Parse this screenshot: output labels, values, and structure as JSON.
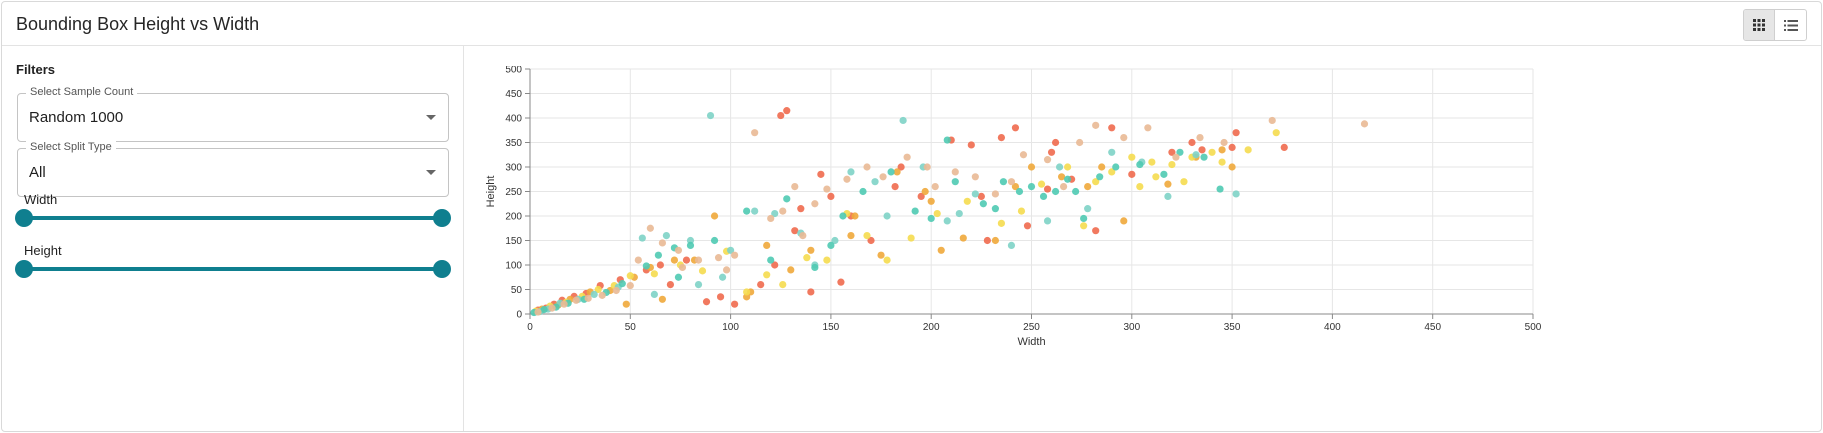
{
  "header": {
    "title": "Bounding Box Height vs Width"
  },
  "view_toggle": {
    "grid_icon": "grid-view-icon",
    "list_icon": "list-view-icon"
  },
  "filters": {
    "title": "Filters",
    "sample_count": {
      "label": "Select Sample Count",
      "value": "Random 1000"
    },
    "split_type": {
      "label": "Select Split Type",
      "value": "All"
    },
    "width_slider": {
      "label": "Width",
      "min": 0,
      "max": 500,
      "low": 0,
      "high": 500
    },
    "height_slider": {
      "label": "Height",
      "min": 0,
      "max": 500,
      "low": 0,
      "high": 500
    }
  },
  "colors": {
    "accent": "#0f7f8f",
    "palette": [
      "#ef6a4e",
      "#f0a93b",
      "#f5dc4f",
      "#7ed3c6",
      "#4fcab2",
      "#e9b995"
    ]
  },
  "chart_data": {
    "type": "scatter",
    "title": "",
    "xlabel": "Width",
    "ylabel": "Height",
    "xlim": [
      0,
      500
    ],
    "ylim": [
      0,
      500
    ],
    "xticks": [
      0,
      50,
      100,
      150,
      200,
      250,
      300,
      350,
      400,
      450,
      500
    ],
    "yticks": [
      0,
      50,
      100,
      150,
      200,
      250,
      300,
      350,
      400,
      450,
      500
    ],
    "grid": true,
    "series": [
      {
        "name": "coral",
        "color": "#ef6a4e",
        "points": [
          [
            4,
            8
          ],
          [
            8,
            12
          ],
          [
            12,
            20
          ],
          [
            16,
            28
          ],
          [
            22,
            36
          ],
          [
            28,
            42
          ],
          [
            35,
            58
          ],
          [
            45,
            70
          ],
          [
            58,
            90
          ],
          [
            65,
            100
          ],
          [
            78,
            110
          ],
          [
            95,
            35
          ],
          [
            115,
            60
          ],
          [
            122,
            100
          ],
          [
            125,
            405
          ],
          [
            128,
            415
          ],
          [
            132,
            170
          ],
          [
            135,
            215
          ],
          [
            145,
            285
          ],
          [
            150,
            240
          ],
          [
            155,
            65
          ],
          [
            160,
            200
          ],
          [
            170,
            150
          ],
          [
            182,
            260
          ],
          [
            185,
            300
          ],
          [
            195,
            240
          ],
          [
            210,
            355
          ],
          [
            220,
            345
          ],
          [
            225,
            240
          ],
          [
            228,
            150
          ],
          [
            235,
            360
          ],
          [
            242,
            380
          ],
          [
            248,
            180
          ],
          [
            258,
            255
          ],
          [
            260,
            330
          ],
          [
            262,
            350
          ],
          [
            270,
            275
          ],
          [
            282,
            170
          ],
          [
            290,
            380
          ],
          [
            300,
            285
          ],
          [
            320,
            330
          ],
          [
            330,
            350
          ],
          [
            335,
            335
          ],
          [
            350,
            340
          ],
          [
            352,
            370
          ],
          [
            376,
            340
          ],
          [
            70,
            60
          ],
          [
            88,
            25
          ],
          [
            102,
            20
          ],
          [
            140,
            45
          ]
        ]
      },
      {
        "name": "orange",
        "color": "#f0a93b",
        "points": [
          [
            6,
            10
          ],
          [
            14,
            18
          ],
          [
            20,
            30
          ],
          [
            30,
            45
          ],
          [
            40,
            48
          ],
          [
            52,
            75
          ],
          [
            60,
            95
          ],
          [
            72,
            110
          ],
          [
            82,
            110
          ],
          [
            92,
            200
          ],
          [
            110,
            45
          ],
          [
            118,
            140
          ],
          [
            130,
            90
          ],
          [
            140,
            130
          ],
          [
            160,
            160
          ],
          [
            175,
            120
          ],
          [
            183,
            290
          ],
          [
            197,
            250
          ],
          [
            205,
            130
          ],
          [
            216,
            155
          ],
          [
            232,
            150
          ],
          [
            242,
            260
          ],
          [
            250,
            300
          ],
          [
            265,
            280
          ],
          [
            278,
            260
          ],
          [
            285,
            300
          ],
          [
            296,
            190
          ],
          [
            318,
            265
          ],
          [
            332,
            320
          ],
          [
            345,
            335
          ],
          [
            350,
            300
          ],
          [
            108,
            35
          ],
          [
            66,
            30
          ],
          [
            48,
            20
          ],
          [
            162,
            200
          ],
          [
            200,
            230
          ]
        ]
      },
      {
        "name": "yellow",
        "color": "#f5dc4f",
        "points": [
          [
            3,
            6
          ],
          [
            10,
            16
          ],
          [
            18,
            24
          ],
          [
            26,
            36
          ],
          [
            34,
            50
          ],
          [
            42,
            58
          ],
          [
            50,
            78
          ],
          [
            62,
            82
          ],
          [
            75,
            100
          ],
          [
            86,
            88
          ],
          [
            98,
            128
          ],
          [
            108,
            45
          ],
          [
            118,
            80
          ],
          [
            126,
            60
          ],
          [
            138,
            115
          ],
          [
            148,
            110
          ],
          [
            158,
            205
          ],
          [
            168,
            160
          ],
          [
            178,
            110
          ],
          [
            190,
            155
          ],
          [
            203,
            205
          ],
          [
            218,
            230
          ],
          [
            235,
            185
          ],
          [
            245,
            210
          ],
          [
            255,
            265
          ],
          [
            268,
            300
          ],
          [
            276,
            180
          ],
          [
            282,
            270
          ],
          [
            290,
            290
          ],
          [
            300,
            320
          ],
          [
            310,
            310
          ],
          [
            320,
            305
          ],
          [
            330,
            320
          ],
          [
            340,
            330
          ],
          [
            345,
            310
          ],
          [
            358,
            335
          ],
          [
            372,
            370
          ],
          [
            304,
            260
          ],
          [
            312,
            280
          ],
          [
            326,
            270
          ]
        ]
      },
      {
        "name": "lightteal",
        "color": "#7ed3c6",
        "points": [
          [
            5,
            5
          ],
          [
            9,
            10
          ],
          [
            15,
            22
          ],
          [
            24,
            30
          ],
          [
            32,
            40
          ],
          [
            44,
            55
          ],
          [
            56,
            155
          ],
          [
            68,
            160
          ],
          [
            80,
            150
          ],
          [
            90,
            405
          ],
          [
            100,
            130
          ],
          [
            112,
            210
          ],
          [
            122,
            205
          ],
          [
            135,
            165
          ],
          [
            152,
            150
          ],
          [
            160,
            290
          ],
          [
            172,
            270
          ],
          [
            186,
            395
          ],
          [
            196,
            300
          ],
          [
            208,
            190
          ],
          [
            214,
            205
          ],
          [
            222,
            245
          ],
          [
            240,
            140
          ],
          [
            258,
            190
          ],
          [
            264,
            300
          ],
          [
            278,
            215
          ],
          [
            290,
            330
          ],
          [
            305,
            310
          ],
          [
            318,
            240
          ],
          [
            332,
            325
          ],
          [
            352,
            245
          ],
          [
            84,
            60
          ],
          [
            96,
            75
          ],
          [
            62,
            40
          ],
          [
            142,
            100
          ],
          [
            178,
            200
          ]
        ]
      },
      {
        "name": "teal",
        "color": "#4fcab2",
        "points": [
          [
            2,
            3
          ],
          [
            7,
            9
          ],
          [
            13,
            14
          ],
          [
            19,
            22
          ],
          [
            27,
            30
          ],
          [
            38,
            44
          ],
          [
            46,
            62
          ],
          [
            58,
            98
          ],
          [
            64,
            120
          ],
          [
            72,
            135
          ],
          [
            80,
            140
          ],
          [
            92,
            150
          ],
          [
            108,
            210
          ],
          [
            128,
            235
          ],
          [
            142,
            95
          ],
          [
            156,
            200
          ],
          [
            166,
            250
          ],
          [
            180,
            290
          ],
          [
            192,
            210
          ],
          [
            200,
            195
          ],
          [
            208,
            355
          ],
          [
            212,
            270
          ],
          [
            226,
            225
          ],
          [
            236,
            270
          ],
          [
            244,
            250
          ],
          [
            250,
            260
          ],
          [
            256,
            240
          ],
          [
            262,
            250
          ],
          [
            268,
            275
          ],
          [
            276,
            195
          ],
          [
            284,
            280
          ],
          [
            292,
            300
          ],
          [
            304,
            305
          ],
          [
            316,
            285
          ],
          [
            324,
            330
          ],
          [
            336,
            320
          ],
          [
            344,
            255
          ],
          [
            74,
            75
          ],
          [
            120,
            110
          ],
          [
            150,
            140
          ],
          [
            232,
            215
          ],
          [
            272,
            250
          ]
        ]
      },
      {
        "name": "peach",
        "color": "#e9b995",
        "points": [
          [
            4,
            4
          ],
          [
            11,
            12
          ],
          [
            17,
            20
          ],
          [
            23,
            28
          ],
          [
            29,
            32
          ],
          [
            36,
            38
          ],
          [
            43,
            48
          ],
          [
            50,
            58
          ],
          [
            54,
            110
          ],
          [
            60,
            175
          ],
          [
            66,
            145
          ],
          [
            74,
            130
          ],
          [
            84,
            110
          ],
          [
            94,
            115
          ],
          [
            102,
            120
          ],
          [
            112,
            370
          ],
          [
            120,
            195
          ],
          [
            126,
            210
          ],
          [
            132,
            260
          ],
          [
            142,
            225
          ],
          [
            148,
            255
          ],
          [
            158,
            275
          ],
          [
            168,
            300
          ],
          [
            176,
            280
          ],
          [
            188,
            320
          ],
          [
            198,
            300
          ],
          [
            212,
            290
          ],
          [
            222,
            280
          ],
          [
            232,
            245
          ],
          [
            246,
            325
          ],
          [
            258,
            315
          ],
          [
            266,
            260
          ],
          [
            274,
            350
          ],
          [
            282,
            385
          ],
          [
            296,
            360
          ],
          [
            308,
            380
          ],
          [
            322,
            320
          ],
          [
            334,
            360
          ],
          [
            346,
            350
          ],
          [
            370,
            395
          ],
          [
            416,
            388
          ],
          [
            76,
            95
          ],
          [
            98,
            90
          ],
          [
            136,
            160
          ],
          [
            202,
            260
          ],
          [
            240,
            270
          ]
        ]
      }
    ]
  }
}
